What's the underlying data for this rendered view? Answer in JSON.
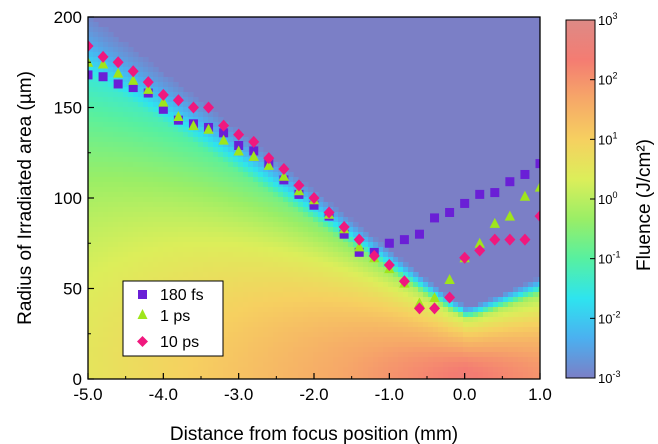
{
  "chart_data": {
    "type": "scatter",
    "background": "heatmap",
    "xlabel": "Distance from focus position (mm)",
    "ylabel": "Radius of Irradiated area (µm)",
    "xlim": [
      -5.0,
      1.0
    ],
    "ylim": [
      0,
      200
    ],
    "x_ticks": [
      -5.0,
      -4.0,
      -3.0,
      -2.0,
      -1.0,
      0.0,
      1.0
    ],
    "x_tick_labels": [
      "-5.0",
      "-4.0",
      "-3.0",
      "-2.0",
      "-1.0",
      "0.0",
      "1.0"
    ],
    "y_ticks": [
      0,
      50,
      100,
      150,
      200
    ],
    "y_tick_labels": [
      "0",
      "50",
      "100",
      "150",
      "200"
    ],
    "legend_position": "bottom-left",
    "series": [
      {
        "name": "180 fs",
        "marker": "square",
        "color": "#6a1fd6",
        "x": [
          -5.0,
          -4.8,
          -4.6,
          -4.4,
          -4.2,
          -4.0,
          -3.8,
          -3.6,
          -3.4,
          -3.2,
          -3.0,
          -2.8,
          -2.6,
          -2.4,
          -2.2,
          -2.0,
          -1.8,
          -1.6,
          -1.4,
          -1.2,
          -1.0,
          -0.8,
          -0.6,
          -0.4,
          -0.2,
          0.0,
          0.2,
          0.4,
          0.6,
          0.8,
          1.0
        ],
        "y": [
          168,
          167,
          163,
          161,
          158,
          149,
          143,
          141,
          139,
          136,
          129,
          126,
          119,
          110,
          102,
          96,
          90,
          80,
          70,
          70,
          75,
          77,
          80,
          89,
          92,
          97,
          102,
          103,
          109,
          113,
          119
        ]
      },
      {
        "name": "1 ps",
        "marker": "triangle",
        "color": "#9fe51c",
        "x": [
          -5.0,
          -4.8,
          -4.6,
          -4.4,
          -4.2,
          -4.0,
          -3.8,
          -3.6,
          -3.4,
          -3.2,
          -3.0,
          -2.8,
          -2.6,
          -2.4,
          -2.2,
          -2.0,
          -1.8,
          -1.6,
          -1.4,
          -1.2,
          -1.0,
          -0.8,
          -0.6,
          -0.4,
          -0.2,
          0.0,
          0.2,
          0.4,
          0.6,
          0.8,
          1.0
        ],
        "y": [
          175,
          174,
          169,
          165,
          160,
          153,
          145,
          140,
          138,
          132,
          126,
          123,
          118,
          112,
          104,
          99,
          91,
          83,
          73,
          67,
          61,
          53,
          42,
          45,
          55,
          67,
          75,
          86,
          90,
          101,
          106
        ]
      },
      {
        "name": "10 ps",
        "marker": "diamond",
        "color": "#f0187e",
        "x": [
          -5.0,
          -4.8,
          -4.6,
          -4.4,
          -4.2,
          -4.0,
          -3.8,
          -3.6,
          -3.4,
          -3.2,
          -3.0,
          -2.8,
          -2.6,
          -2.4,
          -2.2,
          -2.0,
          -1.8,
          -1.6,
          -1.4,
          -1.2,
          -1.0,
          -0.8,
          -0.6,
          -0.4,
          -0.2,
          0.0,
          0.2,
          0.4,
          0.6,
          0.8,
          1.0
        ],
        "y": [
          184,
          178,
          175,
          170,
          164,
          157,
          154,
          150,
          150,
          140,
          135,
          131,
          122,
          116,
          107,
          100,
          92,
          84,
          77,
          68,
          63,
          54,
          39,
          39,
          45,
          67,
          71,
          77,
          77,
          77,
          90
        ]
      }
    ],
    "colorbar": {
      "label": "Fluence (J/cm²)",
      "scale": "log",
      "range": [
        0.001,
        1000
      ],
      "tick_labels": [
        {
          "base": "10",
          "exp": "3"
        },
        {
          "base": "10",
          "exp": "2"
        },
        {
          "base": "10",
          "exp": "1"
        },
        {
          "base": "10",
          "exp": "0"
        },
        {
          "base": "10",
          "exp": "-1"
        },
        {
          "base": "10",
          "exp": "-2"
        },
        {
          "base": "10",
          "exp": "-3"
        }
      ],
      "colors": [
        "#7b7fc6",
        "#4bb0f0",
        "#2ee4ef",
        "#57f0a0",
        "#9aee66",
        "#dcee5a",
        "#f6d060",
        "#f6a868",
        "#f47c72",
        "#dd8a86"
      ]
    }
  }
}
